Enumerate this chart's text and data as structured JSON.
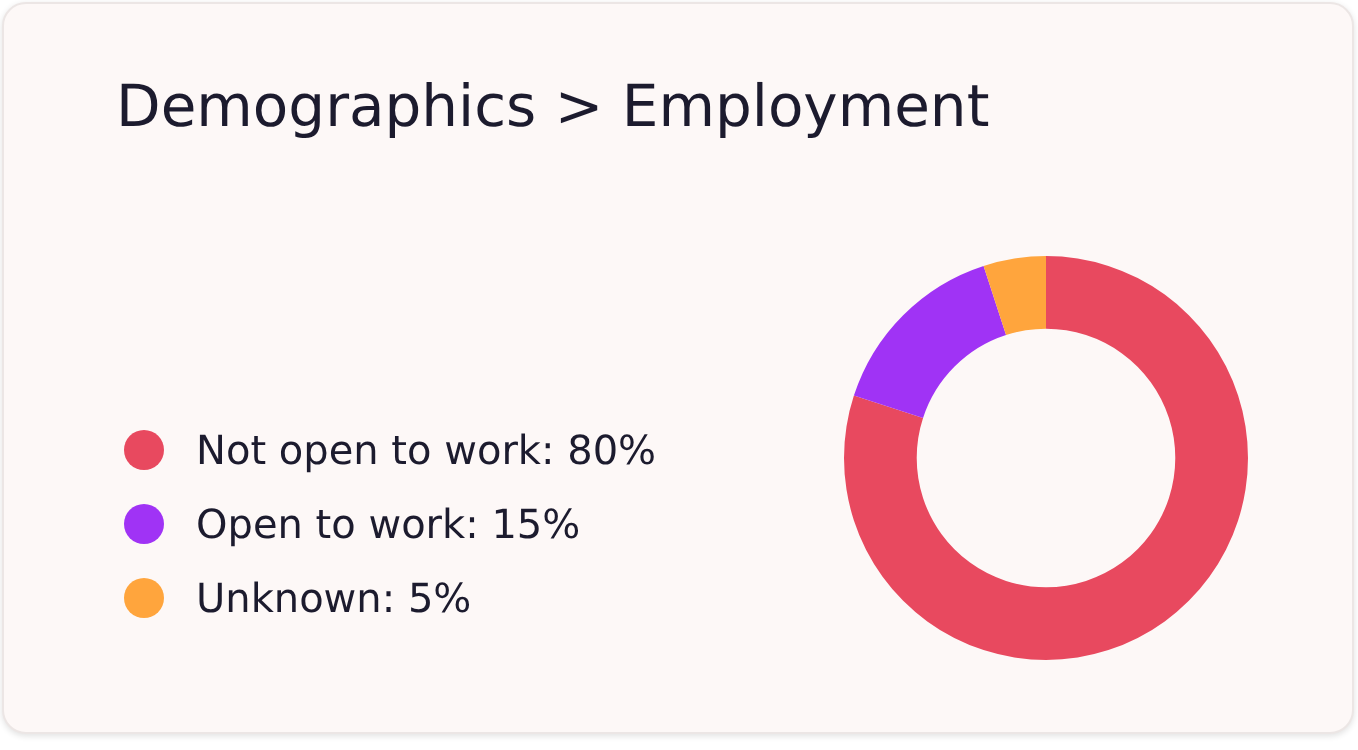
{
  "chart_data": {
    "type": "donut",
    "title": "Demographics > Employment",
    "categories": [
      "Not open to work",
      "Open to work",
      "Unknown"
    ],
    "values": [
      80,
      15,
      5
    ],
    "value_labels": [
      "80%",
      "15%",
      "5%"
    ],
    "colors": [
      "#e8495f",
      "#a033f5",
      "#ffa53d"
    ],
    "legend": "left"
  }
}
